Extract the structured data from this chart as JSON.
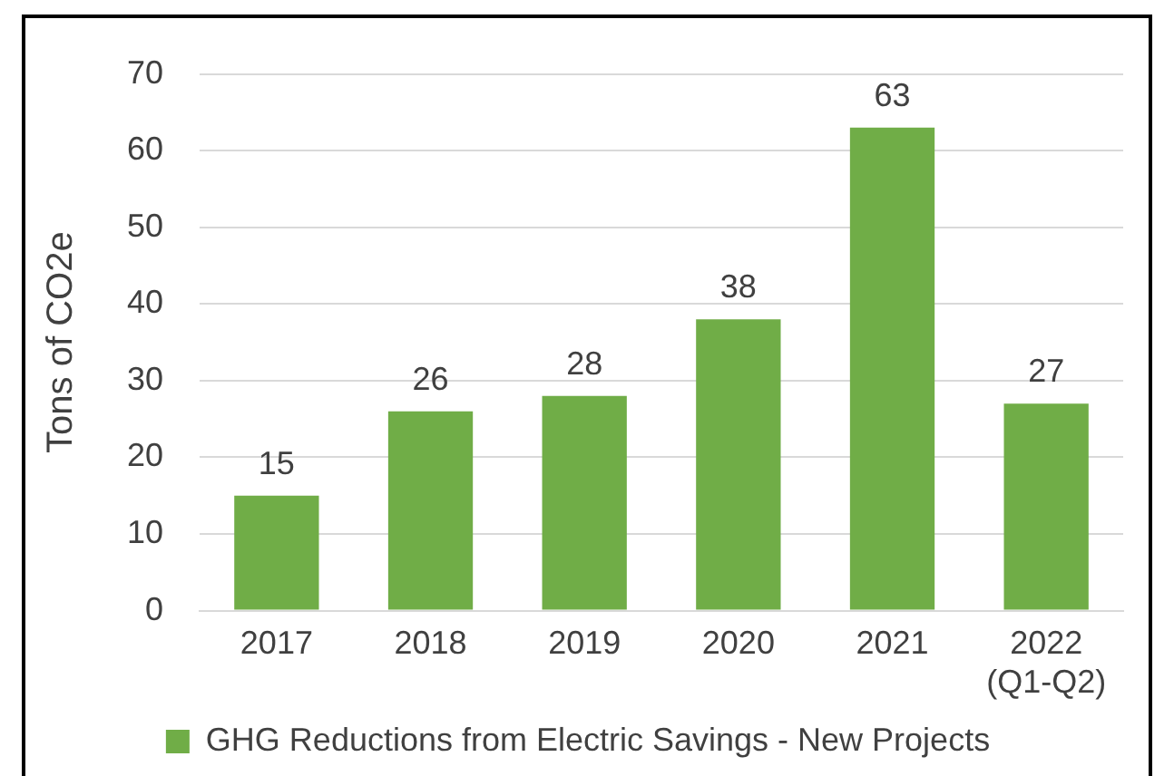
{
  "chart_data": {
    "type": "bar",
    "categories": [
      "2017",
      "2018",
      "2019",
      "2020",
      "2021",
      "2022\n(Q1-Q2)"
    ],
    "series": [
      {
        "name": "GHG Reductions from Electric Savings - New Projects",
        "color": "#70ad47",
        "values": [
          15,
          26,
          28,
          38,
          63,
          27
        ]
      }
    ],
    "ylabel": "Tons of CO2e",
    "ylim": [
      0,
      70
    ],
    "yticks": [
      0,
      10,
      20,
      30,
      40,
      50,
      60,
      70
    ],
    "grid": "y",
    "legend": "bottom",
    "data_labels": true
  }
}
